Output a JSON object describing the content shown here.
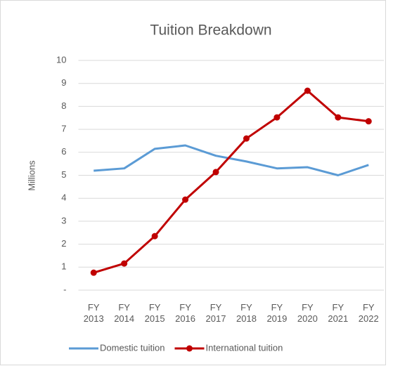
{
  "chart_data": {
    "type": "line",
    "title": "Tuition Breakdown",
    "y_label": "Millions",
    "categories": [
      "FY 2013",
      "FY 2014",
      "FY 2015",
      "FY 2016",
      "FY 2017",
      "FY 2018",
      "FY 2019",
      "FY 2020",
      "FY 2021",
      "FY 2022"
    ],
    "series": [
      {
        "name": "Domestic tuition",
        "color": "#5b9bd5",
        "marker": false,
        "values": [
          5.2,
          5.3,
          6.15,
          6.3,
          5.85,
          5.6,
          5.3,
          5.35,
          5.0,
          5.45
        ]
      },
      {
        "name": "International tuition",
        "color": "#c00000",
        "marker": true,
        "values": [
          0.76,
          1.16,
          2.35,
          3.94,
          5.14,
          6.6,
          7.52,
          8.68,
          7.52,
          7.35
        ]
      }
    ],
    "ylim": [
      0,
      10
    ],
    "yticks": [
      {
        "value": 0,
        "label": "-"
      },
      1,
      2,
      3,
      4,
      5,
      6,
      7,
      8,
      9,
      10
    ],
    "grid": true,
    "legend": "bottom"
  }
}
